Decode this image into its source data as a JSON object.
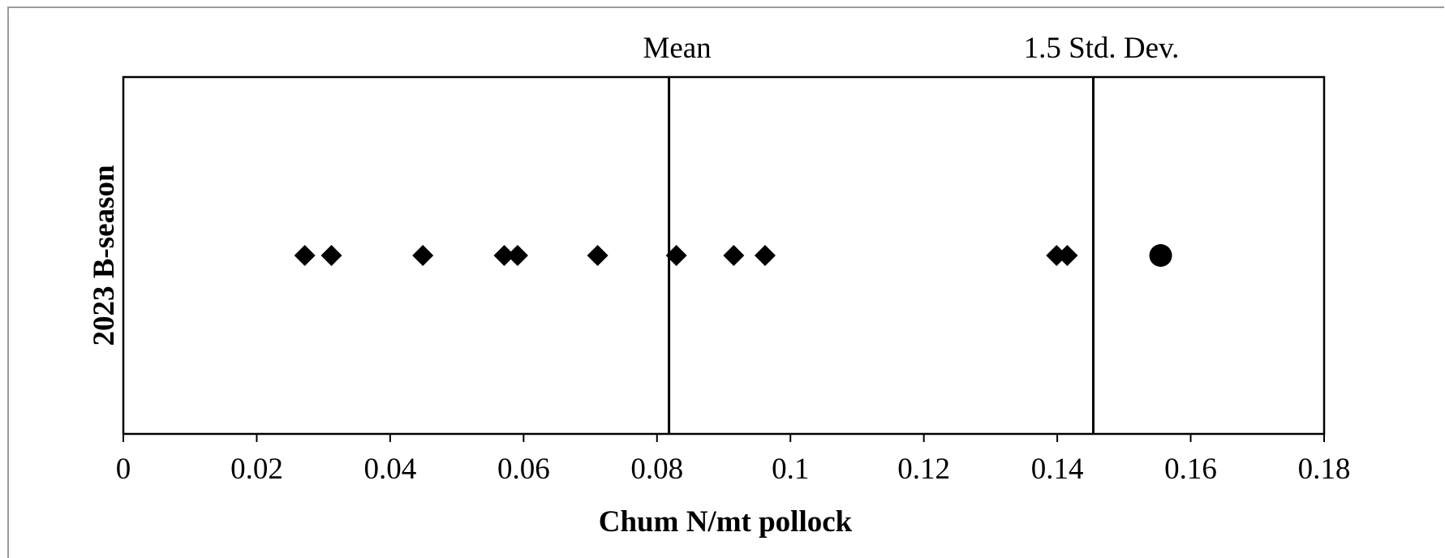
{
  "chart_data": {
    "type": "scatter",
    "title": "",
    "xlabel": "Chum  N/mt pollock",
    "ylabel": "2023 B-season",
    "xlim": [
      0,
      0.18
    ],
    "x_ticks": [
      0,
      0.02,
      0.04,
      0.06,
      0.08,
      0.1,
      0.12,
      0.14,
      0.16,
      0.18
    ],
    "x_tick_labels": [
      "0",
      "0.02",
      "0.04",
      "0.06",
      "0.08",
      "0.1",
      "0.12",
      "0.14",
      "0.16",
      "0.18"
    ],
    "grid": false,
    "legend": "none",
    "series": [
      {
        "marker": "diamond",
        "color": "#000000",
        "x": [
          0.0272,
          0.0312,
          0.0449,
          0.0571,
          0.0591,
          0.0711,
          0.0829,
          0.0915,
          0.0962,
          0.1399,
          0.1415
        ],
        "y": [
          1,
          1,
          1,
          1,
          1,
          1,
          1,
          1,
          1,
          1,
          1
        ]
      },
      {
        "marker": "circle",
        "color": "#000000",
        "x": [
          0.1555
        ],
        "y": [
          1
        ]
      }
    ],
    "reference_lines": [
      {
        "label": "Mean",
        "x": 0.0818
      },
      {
        "label": "1.5 Std. Dev.",
        "x": 0.1454
      }
    ]
  }
}
